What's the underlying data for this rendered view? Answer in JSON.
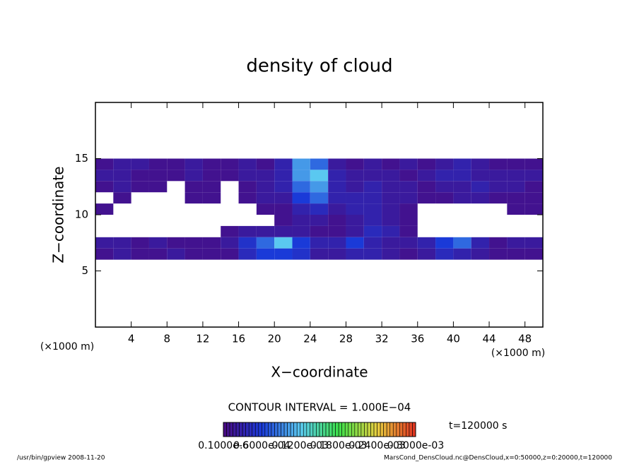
{
  "chart_data": {
    "type": "heatmap",
    "title": "density of cloud",
    "x_label": "X−coordinate",
    "y_label": "Z−coordinate",
    "x_unit_left": "(×1000 m)",
    "x_unit_right": "(×1000 m)",
    "xlim": [
      0,
      50
    ],
    "ylim": [
      0,
      20
    ],
    "xticks": [
      4,
      8,
      12,
      16,
      20,
      24,
      28,
      32,
      36,
      40,
      44,
      48
    ],
    "yticks": [
      5,
      10,
      15
    ],
    "xbins": [
      0,
      2,
      4,
      6,
      8,
      10,
      12,
      14,
      16,
      18,
      20,
      22,
      24,
      26,
      28,
      30,
      32,
      34,
      36,
      38,
      40,
      42,
      44,
      46,
      48,
      50
    ],
    "zbins": [
      15,
      14,
      13,
      12,
      11,
      10,
      9,
      8,
      7,
      6
    ],
    "values": [
      [
        1e-05,
        2e-05,
        2e-05,
        1e-05,
        1e-05,
        2e-05,
        1e-05,
        1e-05,
        2e-05,
        1e-05,
        3e-05,
        0.0001,
        8e-05,
        2e-05,
        1e-05,
        2e-05,
        1e-05,
        2e-05,
        1e-05,
        2e-05,
        3e-05,
        2e-05,
        1e-05,
        1e-05,
        1e-05
      ],
      [
        2e-05,
        2e-05,
        1e-05,
        1e-05,
        1e-05,
        2e-05,
        1e-05,
        1e-05,
        2e-05,
        2e-05,
        3e-05,
        0.0001,
        0.00012,
        3e-05,
        2e-05,
        2e-05,
        2e-05,
        1e-05,
        2e-05,
        3e-05,
        3e-05,
        2e-05,
        2e-05,
        2e-05,
        2e-05
      ],
      [
        1e-05,
        2e-05,
        1e-05,
        1e-05,
        0,
        1e-05,
        1e-05,
        0,
        1e-05,
        2e-05,
        3e-05,
        8e-05,
        0.0001,
        3e-05,
        2e-05,
        3e-05,
        2e-05,
        2e-05,
        1e-05,
        2e-05,
        2e-05,
        3e-05,
        2e-05,
        2e-05,
        1e-05
      ],
      [
        0,
        1e-05,
        0,
        0,
        0,
        1e-05,
        1e-05,
        0,
        1e-05,
        2e-05,
        2e-05,
        6e-05,
        8e-05,
        3e-05,
        3e-05,
        3e-05,
        2e-05,
        2e-05,
        1e-05,
        1e-05,
        2e-05,
        2e-05,
        1e-05,
        1e-05,
        1e-05
      ],
      [
        1e-05,
        0,
        0,
        0,
        0,
        0,
        0,
        0,
        0,
        1e-05,
        1e-05,
        3e-05,
        4e-05,
        2e-05,
        3e-05,
        3e-05,
        2e-05,
        1e-05,
        0,
        0,
        0,
        0,
        0,
        1e-05,
        1e-05
      ],
      [
        0,
        0,
        0,
        0,
        0,
        0,
        0,
        0,
        0,
        0,
        1e-05,
        2e-05,
        2e-05,
        1e-05,
        2e-05,
        3e-05,
        2e-05,
        1e-05,
        0,
        0,
        0,
        0,
        0,
        0,
        0
      ],
      [
        0,
        0,
        0,
        0,
        0,
        0,
        0,
        1e-05,
        2e-05,
        2e-05,
        2e-05,
        2e-05,
        1e-05,
        1e-05,
        2e-05,
        4e-05,
        3e-05,
        1e-05,
        0,
        0,
        0,
        0,
        0,
        0,
        0
      ],
      [
        2e-05,
        2e-05,
        1e-05,
        2e-05,
        1e-05,
        1e-05,
        1e-05,
        2e-05,
        5e-05,
        8e-05,
        0.00012,
        6e-05,
        3e-05,
        3e-05,
        6e-05,
        3e-05,
        2e-05,
        2e-05,
        3e-05,
        6e-05,
        8e-05,
        3e-05,
        1e-05,
        2e-05,
        2e-05
      ],
      [
        1e-05,
        2e-05,
        1e-05,
        1e-05,
        2e-05,
        1e-05,
        1e-05,
        1e-05,
        4e-05,
        6e-05,
        6e-05,
        5e-05,
        2e-05,
        2e-05,
        3e-05,
        3e-05,
        2e-05,
        1e-05,
        2e-05,
        4e-05,
        3e-05,
        2e-05,
        1e-05,
        1e-05,
        1e-05
      ]
    ],
    "contour_interval": "CONTOUR INTERVAL = 1.000E−04",
    "colorbar": {
      "levels": [
        {
          "value": 1e-07,
          "label": "0.1000e-6"
        },
        {
          "value": 6e-05,
          "label": "0.6000e-04"
        },
        {
          "value": 0.00012,
          "label": "0.1200e-03"
        },
        {
          "value": 0.00018,
          "label": "0.1800e-03"
        },
        {
          "value": 0.00024,
          "label": "0.2400e-03"
        },
        {
          "value": 0.0003,
          "label": "0.3000e-03"
        }
      ],
      "colors": [
        "#4a0a80",
        "#1a3ad8",
        "#5ac8f0",
        "#3ce04a",
        "#e8d040",
        "#e03020"
      ]
    },
    "time_label": "t=120000 s",
    "footer_left": "/usr/bin/gpview   2008-11-20",
    "footer_right": "MarsCond_DensCloud.nc@DensCloud,x=0:50000,z=0:20000,t=120000"
  }
}
